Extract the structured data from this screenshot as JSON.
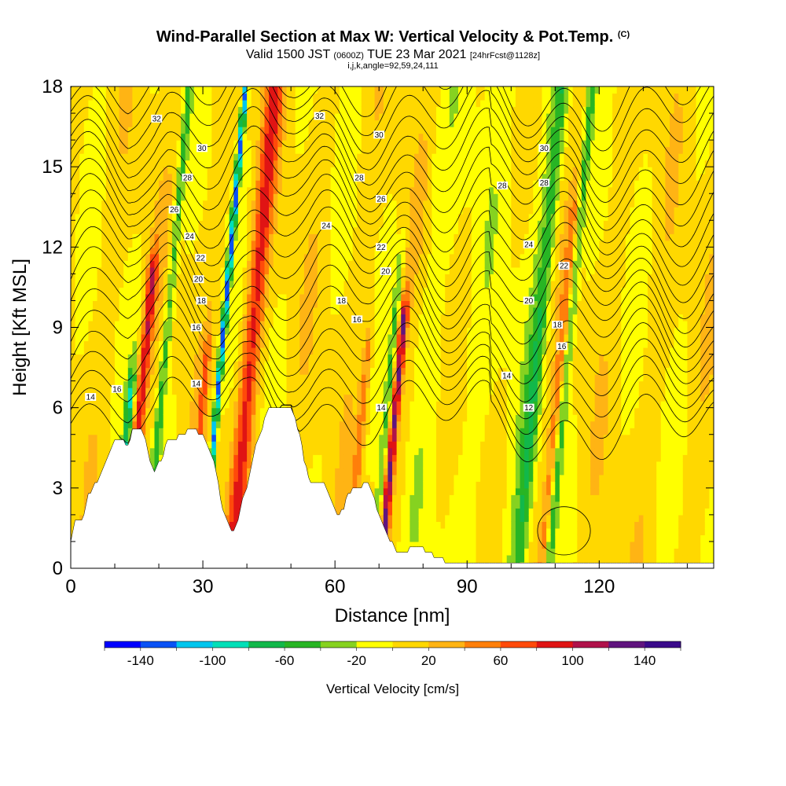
{
  "header": {
    "title": "Wind-Parallel Section at Max W: Vertical Velocity & Pot.Temp.",
    "copyright": "(C)",
    "valid_prefix": "Valid 1500 JST",
    "valid_zulu": "(0600Z)",
    "valid_date": "TUE 23 Mar 2021",
    "forecast": "[24hrFcst@1128z]",
    "indices": "i,j,k,angle=92,59,24,111"
  },
  "chart_data": {
    "type": "heatmap",
    "xlabel": "Distance [nm]",
    "ylabel": "Height [Kft MSL]",
    "xlim": [
      0,
      146
    ],
    "ylim": [
      0,
      18
    ],
    "xticks": [
      0,
      30,
      60,
      90,
      120
    ],
    "yticks": [
      0,
      3,
      6,
      9,
      12,
      15,
      18
    ],
    "terrain_kft": [
      [
        0,
        1.0
      ],
      [
        1,
        1.7
      ],
      [
        2,
        1.8
      ],
      [
        3,
        2.0
      ],
      [
        4,
        2.8
      ],
      [
        5,
        3.0
      ],
      [
        6,
        3.2
      ],
      [
        7,
        3.6
      ],
      [
        8,
        4.0
      ],
      [
        9,
        4.4
      ],
      [
        10,
        4.8
      ],
      [
        12,
        4.8
      ],
      [
        13,
        4.5
      ],
      [
        14,
        5.2
      ],
      [
        16,
        5.2
      ],
      [
        17,
        4.7
      ],
      [
        18,
        4.0
      ],
      [
        19,
        3.6
      ],
      [
        20,
        3.9
      ],
      [
        21,
        4.2
      ],
      [
        22,
        4.8
      ],
      [
        24,
        4.8
      ],
      [
        25,
        5.0
      ],
      [
        27,
        5.2
      ],
      [
        28,
        5.3
      ],
      [
        29,
        5.0
      ],
      [
        30,
        4.9
      ],
      [
        31,
        4.6
      ],
      [
        32,
        4.2
      ],
      [
        33,
        3.6
      ],
      [
        34,
        2.6
      ],
      [
        35,
        2.0
      ],
      [
        36,
        1.5
      ],
      [
        37,
        1.4
      ],
      [
        38,
        1.9
      ],
      [
        39,
        2.5
      ],
      [
        40,
        3.0
      ],
      [
        41,
        3.8
      ],
      [
        42,
        4.5
      ],
      [
        43,
        5.0
      ],
      [
        44,
        5.5
      ],
      [
        45,
        5.9
      ],
      [
        47,
        5.9
      ],
      [
        48,
        6.1
      ],
      [
        50,
        6.1
      ],
      [
        51,
        5.5
      ],
      [
        52,
        4.9
      ],
      [
        53,
        4.1
      ],
      [
        54,
        3.4
      ],
      [
        55,
        3.2
      ],
      [
        56,
        3.1
      ],
      [
        57,
        3.2
      ],
      [
        58,
        3.0
      ],
      [
        59,
        2.6
      ],
      [
        60,
        2.1
      ],
      [
        61,
        2.0
      ],
      [
        62,
        2.3
      ],
      [
        63,
        2.8
      ],
      [
        64,
        3.0
      ],
      [
        66,
        3.0
      ],
      [
        67,
        3.2
      ],
      [
        68,
        3.0
      ],
      [
        69,
        2.5
      ],
      [
        70,
        2.0
      ],
      [
        71,
        1.6
      ],
      [
        72,
        1.2
      ],
      [
        73,
        0.9
      ],
      [
        74,
        0.6
      ],
      [
        76,
        0.6
      ],
      [
        77,
        0.8
      ],
      [
        80,
        0.8
      ],
      [
        81,
        0.6
      ],
      [
        83,
        0.4
      ],
      [
        85,
        0.3
      ],
      [
        92,
        0.3
      ],
      [
        93,
        0.2
      ],
      [
        95,
        0.3
      ],
      [
        146,
        0.3
      ]
    ],
    "potential_temperature_contours_C": [
      12,
      14,
      16,
      18,
      20,
      22,
      24,
      26,
      28,
      30,
      32
    ],
    "contour_labels": [
      {
        "text": "32",
        "x": 19.5,
        "y": 16.8
      },
      {
        "text": "30",
        "x": 29.8,
        "y": 15.7
      },
      {
        "text": "28",
        "x": 26.5,
        "y": 14.6
      },
      {
        "text": "26",
        "x": 23.5,
        "y": 13.4
      },
      {
        "text": "24",
        "x": 27.0,
        "y": 12.4
      },
      {
        "text": "22",
        "x": 29.5,
        "y": 11.6
      },
      {
        "text": "20",
        "x": 29.0,
        "y": 10.8
      },
      {
        "text": "18",
        "x": 29.7,
        "y": 10.0
      },
      {
        "text": "16",
        "x": 28.5,
        "y": 9.0
      },
      {
        "text": "14",
        "x": 28.5,
        "y": 6.9
      },
      {
        "text": "16",
        "x": 10.5,
        "y": 6.7
      },
      {
        "text": "14",
        "x": 4.5,
        "y": 6.4
      },
      {
        "text": "32",
        "x": 56.5,
        "y": 16.9
      },
      {
        "text": "30",
        "x": 70.0,
        "y": 16.2
      },
      {
        "text": "28",
        "x": 65.5,
        "y": 14.6
      },
      {
        "text": "26",
        "x": 70.5,
        "y": 13.8
      },
      {
        "text": "24",
        "x": 58.0,
        "y": 12.8
      },
      {
        "text": "22",
        "x": 70.5,
        "y": 12.0
      },
      {
        "text": "20",
        "x": 71.5,
        "y": 11.1
      },
      {
        "text": "18",
        "x": 61.5,
        "y": 10.0
      },
      {
        "text": "16",
        "x": 65.0,
        "y": 9.3
      },
      {
        "text": "14",
        "x": 70.5,
        "y": 6.0
      },
      {
        "text": "30",
        "x": 107.5,
        "y": 15.7
      },
      {
        "text": "28",
        "x": 98.0,
        "y": 14.3
      },
      {
        "text": "28",
        "x": 107.5,
        "y": 14.4
      },
      {
        "text": "24",
        "x": 104.0,
        "y": 12.1
      },
      {
        "text": "22",
        "x": 112.0,
        "y": 11.3
      },
      {
        "text": "20",
        "x": 104.0,
        "y": 10.0
      },
      {
        "text": "18",
        "x": 110.5,
        "y": 9.1
      },
      {
        "text": "16",
        "x": 111.5,
        "y": 8.3
      },
      {
        "text": "14",
        "x": 99.0,
        "y": 7.2
      },
      {
        "text": "12",
        "x": 104.0,
        "y": 6.0
      }
    ],
    "updraft_columns": [
      {
        "x": 12.5,
        "half_width": 1.2,
        "top": 11.2,
        "value": 90
      },
      {
        "x": 29.8,
        "half_width": 0.6,
        "top": 18,
        "value": -130
      },
      {
        "x": 36.5,
        "half_width": 2.0,
        "top": 18,
        "value": 75
      },
      {
        "x": 70.5,
        "half_width": 0.9,
        "top": 9.5,
        "value": 115
      },
      {
        "x": 63.0,
        "half_width": 1.0,
        "top": 8.5,
        "value": 45
      },
      {
        "x": 107.0,
        "half_width": 1.2,
        "top": 13.5,
        "value": 40
      },
      {
        "x": 26.5,
        "half_width": 0.8,
        "top": 8.0,
        "value": 55
      },
      {
        "x": 10.0,
        "half_width": 0.9,
        "top": 7.0,
        "value": -75
      },
      {
        "x": 68.5,
        "half_width": 0.8,
        "top": 11.5,
        "value": -45
      },
      {
        "x": 17.0,
        "half_width": 1.0,
        "top": 18,
        "value": -55
      },
      {
        "x": 101.5,
        "half_width": 1.8,
        "top": 18,
        "value": -60
      },
      {
        "x": 108.5,
        "half_width": 1.0,
        "top": 18,
        "value": -55
      }
    ],
    "colorbar": {
      "title": "Vertical Velocity [cm/s]",
      "bounds": [
        -160,
        -140,
        -120,
        -100,
        -80,
        -60,
        -40,
        -20,
        0,
        20,
        40,
        60,
        80,
        100,
        120,
        140,
        160
      ],
      "colors": [
        "#0000ff",
        "#0a52f5",
        "#00c6ee",
        "#00e0b8",
        "#12b84a",
        "#28b524",
        "#86d220",
        "#ffff00",
        "#ffd800",
        "#ffb414",
        "#ff7f0a",
        "#ff4a0a",
        "#e01414",
        "#b0124a",
        "#60147e",
        "#3a0a8a"
      ],
      "tick_labels": [
        "-140",
        "-100",
        "-60",
        "-20",
        "20",
        "60",
        "100",
        "140"
      ]
    }
  }
}
